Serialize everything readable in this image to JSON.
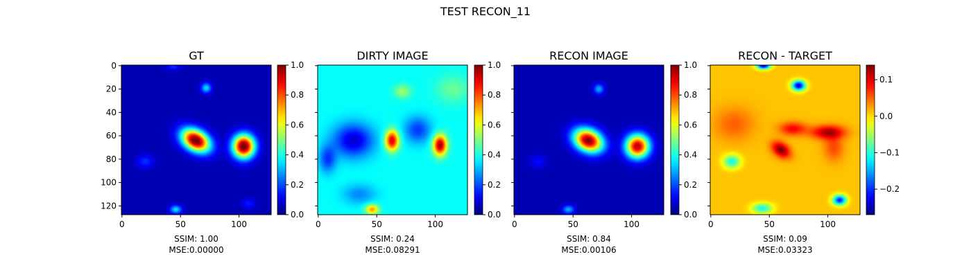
{
  "figure": {
    "suptitle": "TEST RECON_11"
  },
  "chart_data": [
    {
      "type": "heatmap",
      "title": "GT",
      "colormap": "jet",
      "x_ticks": [
        "0",
        "50",
        "100"
      ],
      "y_ticks": [
        "0",
        "20",
        "40",
        "60",
        "80",
        "100",
        "120"
      ],
      "xlim": [
        0,
        127
      ],
      "ylim": [
        127,
        0
      ],
      "colorbar": {
        "range": [
          0.0,
          1.0
        ],
        "ticks": [
          "0.0",
          "0.2",
          "0.4",
          "0.6",
          "0.8",
          "1.0"
        ]
      },
      "metrics": {
        "ssim": "SSIM: 1.00",
        "mse": "MSE:0.00000"
      },
      "background_level": 0.05,
      "blobs": [
        {
          "x": 63,
          "y": 64,
          "sx": 9,
          "sy": 6,
          "rot": 30,
          "amp": 1.0
        },
        {
          "x": 104,
          "y": 69,
          "sx": 6.5,
          "sy": 7,
          "rot": 0,
          "amp": 1.0
        },
        {
          "x": 72,
          "y": 19,
          "sx": 3,
          "sy": 3,
          "rot": 0,
          "amp": 0.3
        },
        {
          "x": 46,
          "y": 123,
          "sx": 3.5,
          "sy": 2.5,
          "rot": 0,
          "amp": 0.3
        },
        {
          "x": 20,
          "y": 82,
          "sx": 5,
          "sy": 4,
          "rot": 0,
          "amp": 0.12
        },
        {
          "x": 108,
          "y": 118,
          "sx": 4,
          "sy": 3,
          "rot": 0,
          "amp": 0.1
        },
        {
          "x": 44,
          "y": 1,
          "sx": 4,
          "sy": 2,
          "rot": 0,
          "amp": 0.12
        }
      ]
    },
    {
      "type": "heatmap",
      "title": "DIRTY IMAGE",
      "colormap": "jet",
      "x_ticks": [
        "0",
        "50",
        "100"
      ],
      "y_ticks": [
        "",
        "",
        "",
        "",
        "",
        "",
        ""
      ],
      "xlim": [
        0,
        127
      ],
      "ylim": [
        127,
        0
      ],
      "colorbar": {
        "range": [
          0.0,
          1.0
        ],
        "ticks": [
          "0.0",
          "0.2",
          "0.4",
          "0.6",
          "0.8",
          "1.0"
        ]
      },
      "metrics": {
        "ssim": "SSIM: 0.24",
        "mse": "MSE:0.08291"
      },
      "background_level": 0.38,
      "blobs": [
        {
          "x": 63,
          "y": 64,
          "sx": 4,
          "sy": 6,
          "rot": 0,
          "amp": 0.55
        },
        {
          "x": 104,
          "y": 68,
          "sx": 4,
          "sy": 6,
          "rot": 0,
          "amp": 0.6
        },
        {
          "x": 30,
          "y": 64,
          "sx": 12,
          "sy": 10,
          "rot": 0,
          "amp": -0.3
        },
        {
          "x": 85,
          "y": 55,
          "sx": 8,
          "sy": 8,
          "rot": 0,
          "amp": -0.2
        },
        {
          "x": 72,
          "y": 22,
          "sx": 5,
          "sy": 4,
          "rot": 0,
          "amp": 0.15
        },
        {
          "x": 46,
          "y": 123,
          "sx": 4,
          "sy": 3,
          "rot": 0,
          "amp": 0.35
        },
        {
          "x": 8,
          "y": 80,
          "sx": 5,
          "sy": 8,
          "rot": 0,
          "amp": -0.2
        },
        {
          "x": 115,
          "y": 20,
          "sx": 10,
          "sy": 8,
          "rot": 0,
          "amp": 0.1
        },
        {
          "x": 35,
          "y": 110,
          "sx": 10,
          "sy": 6,
          "rot": 0,
          "amp": -0.12
        }
      ]
    },
    {
      "type": "heatmap",
      "title": "RECON IMAGE",
      "colormap": "jet",
      "x_ticks": [
        "0",
        "50",
        "100"
      ],
      "y_ticks": [
        "",
        "",
        "",
        "",
        "",
        "",
        ""
      ],
      "xlim": [
        0,
        127
      ],
      "ylim": [
        127,
        0
      ],
      "colorbar": {
        "range": [
          0.0,
          1.0
        ],
        "ticks": [
          "0.0",
          "0.2",
          "0.4",
          "0.6",
          "0.8",
          "1.0"
        ]
      },
      "metrics": {
        "ssim": "SSIM: 0.84",
        "mse": "MSE:0.00106"
      },
      "background_level": 0.05,
      "blobs": [
        {
          "x": 63,
          "y": 64,
          "sx": 9,
          "sy": 6.5,
          "rot": 25,
          "amp": 0.95
        },
        {
          "x": 105,
          "y": 69,
          "sx": 7,
          "sy": 7,
          "rot": 0,
          "amp": 0.9
        },
        {
          "x": 72,
          "y": 20,
          "sx": 3,
          "sy": 3,
          "rot": 0,
          "amp": 0.25
        },
        {
          "x": 46,
          "y": 123,
          "sx": 3.5,
          "sy": 2.5,
          "rot": 0,
          "amp": 0.25
        },
        {
          "x": 20,
          "y": 82,
          "sx": 5,
          "sy": 4,
          "rot": 0,
          "amp": 0.08
        }
      ]
    },
    {
      "type": "heatmap",
      "title": "RECON - TARGET",
      "colormap": "jet",
      "x_ticks": [
        "0",
        "50",
        "100"
      ],
      "y_ticks": [
        "",
        "",
        "",
        "",
        "",
        "",
        ""
      ],
      "xlim": [
        0,
        127
      ],
      "ylim": [
        127,
        0
      ],
      "colorbar": {
        "range": [
          -0.27,
          0.14
        ],
        "ticks": [
          "-0.2",
          "-0.1",
          "0.0",
          "0.1"
        ]
      },
      "metrics": {
        "ssim": "SSIM: 0.09",
        "mse": "MSE:0.03323"
      },
      "background_level": 0.01,
      "blobs": [
        {
          "x": 60,
          "y": 72,
          "sx": 6,
          "sy": 4,
          "rot": 35,
          "amp": 0.13
        },
        {
          "x": 100,
          "y": 57,
          "sx": 10,
          "sy": 4,
          "rot": 0,
          "amp": 0.11
        },
        {
          "x": 70,
          "y": 54,
          "sx": 8,
          "sy": 4,
          "rot": 0,
          "amp": 0.08
        },
        {
          "x": 75,
          "y": 17,
          "sx": 4,
          "sy": 3,
          "rot": 0,
          "amp": -0.25
        },
        {
          "x": 45,
          "y": 0,
          "sx": 4,
          "sy": 2,
          "rot": 0,
          "amp": -0.26
        },
        {
          "x": 110,
          "y": 115,
          "sx": 4,
          "sy": 3,
          "rot": 0,
          "amp": -0.22
        },
        {
          "x": 18,
          "y": 82,
          "sx": 5,
          "sy": 4,
          "rot": 0,
          "amp": -0.12
        },
        {
          "x": 44,
          "y": 122,
          "sx": 6,
          "sy": 3,
          "rot": 0,
          "amp": -0.12
        },
        {
          "x": 105,
          "y": 70,
          "sx": 6,
          "sy": 8,
          "rot": 0,
          "amp": 0.05
        },
        {
          "x": 20,
          "y": 50,
          "sx": 12,
          "sy": 10,
          "rot": 0,
          "amp": 0.04
        }
      ]
    }
  ]
}
